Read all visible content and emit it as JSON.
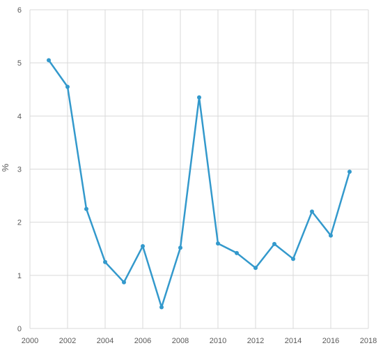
{
  "chart_data": {
    "type": "line",
    "title": "",
    "xlabel": "",
    "ylabel": "%",
    "xlim": [
      2000,
      2018
    ],
    "ylim": [
      0,
      6
    ],
    "x_ticks": [
      2000,
      2002,
      2004,
      2006,
      2008,
      2010,
      2012,
      2014,
      2016,
      2018
    ],
    "y_ticks": [
      0,
      1,
      2,
      3,
      4,
      5,
      6
    ],
    "x_tick_labels": [
      "2000",
      "2002",
      "2004",
      "2006",
      "2008",
      "2010",
      "2012",
      "2014",
      "2016",
      "2018"
    ],
    "y_tick_labels": [
      "0",
      "1",
      "2",
      "3",
      "4",
      "5",
      "6"
    ],
    "grid": true,
    "legend": "none",
    "series": [
      {
        "color": "#3399cc",
        "x": [
          2001,
          2002,
          2003,
          2004,
          2005,
          2006,
          2007,
          2008,
          2009,
          2010,
          2011,
          2012,
          2013,
          2014,
          2015,
          2016,
          2017
        ],
        "values": [
          5.05,
          4.55,
          2.25,
          1.25,
          0.87,
          1.55,
          0.4,
          1.52,
          4.35,
          1.6,
          1.42,
          1.14,
          1.59,
          1.31,
          2.2,
          1.75,
          2.95
        ]
      }
    ]
  }
}
